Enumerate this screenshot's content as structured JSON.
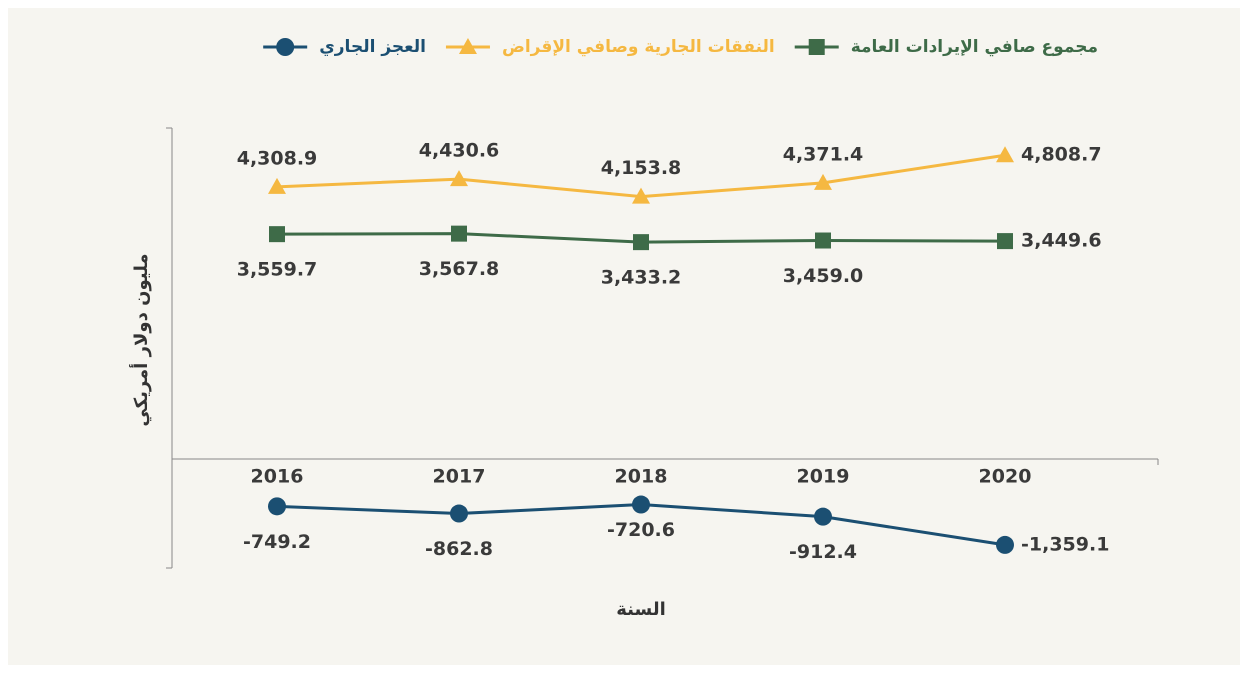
{
  "chart_data": {
    "type": "line",
    "x_label": "السنة",
    "y_label": "مليون دولار أمريكي",
    "categories": [
      "2016",
      "2017",
      "2018",
      "2019",
      "2020"
    ],
    "series": [
      {
        "name": "مجموع صافي الإيرادات العامة",
        "color": "#3e6b48",
        "marker": "square",
        "values": [
          3559.7,
          3567.8,
          3433.2,
          3459.0,
          3449.6
        ],
        "value_labels": [
          "3,559.7",
          "3,567.8",
          "3,433.2",
          "3,459.0",
          "3,449.6"
        ]
      },
      {
        "name": "النفقات الجارية وصافي الإقراض",
        "color": "#f5b841",
        "marker": "triangle",
        "values": [
          4308.9,
          4430.6,
          4153.8,
          4371.4,
          4808.7
        ],
        "value_labels": [
          "4,308.9",
          "4,430.6",
          "4,153.8",
          "4,371.4",
          "4,808.7"
        ]
      },
      {
        "name": "العجز الجاري",
        "color": "#1b4f72",
        "marker": "circle",
        "values": [
          -749.2,
          -862.8,
          -720.6,
          -912.4,
          -1359.1
        ],
        "value_labels": [
          "-749.2",
          "-862.8",
          "-720.6",
          "-912.4",
          "-1,359.1"
        ]
      }
    ],
    "ylim": [
      -1725,
      5240
    ]
  }
}
